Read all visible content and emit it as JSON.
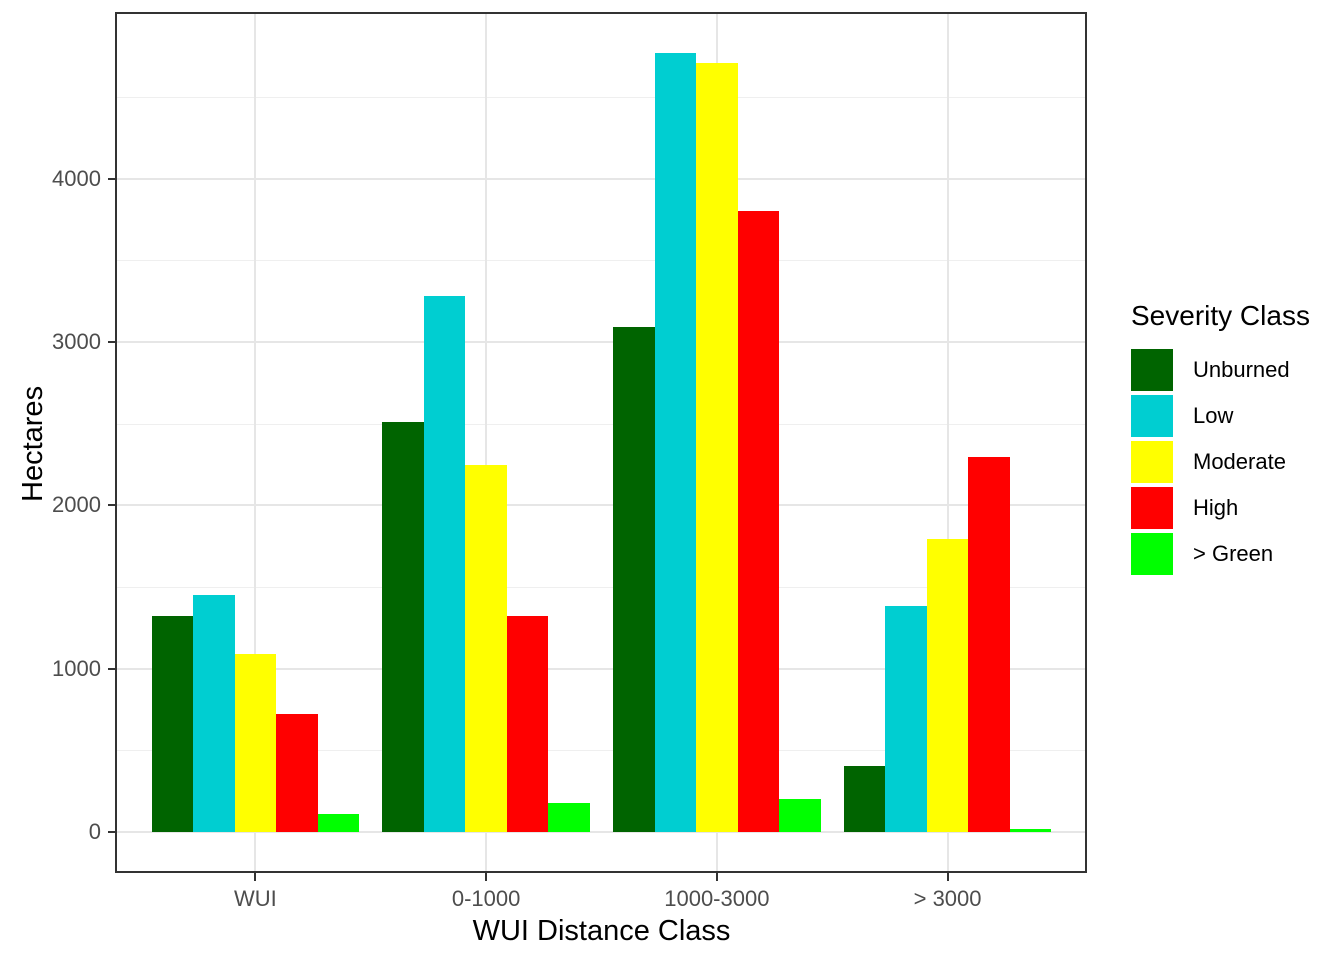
{
  "chart_data": {
    "type": "bar",
    "grouping": "grouped",
    "title": "",
    "xlabel": "WUI Distance Class",
    "ylabel": "Hectares",
    "categories": [
      "WUI",
      "0-1000",
      "1000-3000",
      "> 3000"
    ],
    "series": [
      {
        "name": "Unburned",
        "color": "#006400",
        "values": [
          1320,
          2510,
          3090,
          405
        ]
      },
      {
        "name": "Low",
        "color": "#00CED1",
        "values": [
          1450,
          3280,
          4770,
          1385
        ]
      },
      {
        "name": "Moderate",
        "color": "#FFFF00",
        "values": [
          1090,
          2250,
          4710,
          1795
        ]
      },
      {
        "name": "High",
        "color": "#FF0000",
        "values": [
          725,
          1320,
          3800,
          2295
        ]
      },
      {
        "name": "> Green",
        "color": "#00FF00",
        "values": [
          110,
          175,
          200,
          20
        ]
      }
    ],
    "y_ticks": [
      0,
      1000,
      2000,
      3000,
      4000
    ],
    "ylim": [
      0,
      5000
    ],
    "grid": true,
    "gridlines": {
      "major_color": "#e6e6e6",
      "minor_color": "#efefef",
      "minor_step": 500
    },
    "legend": {
      "title": "Severity Class",
      "position": "right",
      "entries": [
        "Unburned",
        "Low",
        "Moderate",
        "High",
        "> Green"
      ]
    },
    "style": {
      "panel_border_color": "#333333",
      "tick_label_color": "#4d4d4d",
      "background": "#ffffff"
    }
  }
}
